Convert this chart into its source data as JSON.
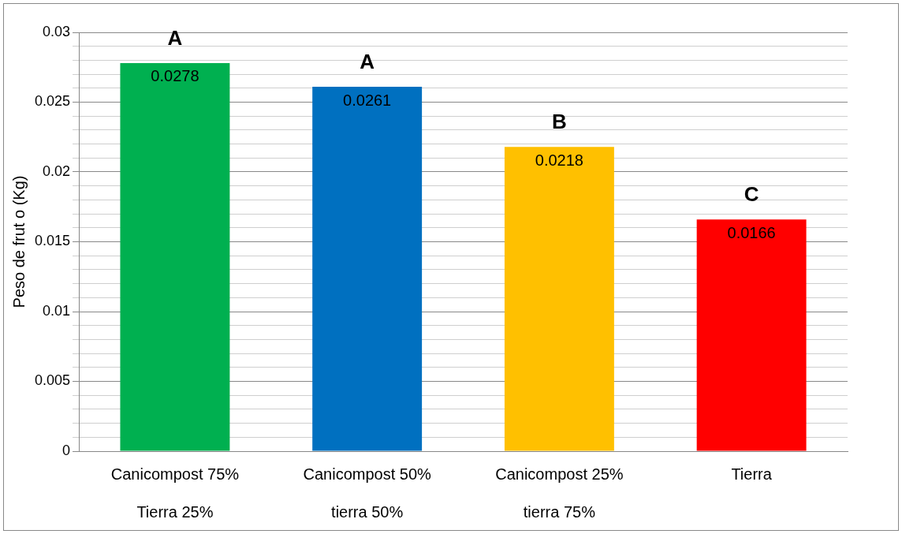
{
  "chart_data": {
    "type": "bar",
    "ylabel": "Peso de frut o (Kg)",
    "categories": [
      "Canicompost 75%\n\nTierra 25%",
      "Canicompost 50%\n\ntierra 50%",
      "Canicompost 25%\n\ntierra 75%",
      "Tierra"
    ],
    "values": [
      0.0278,
      0.0261,
      0.0218,
      0.0166
    ],
    "colors": [
      "#00b050",
      "#0070c0",
      "#ffc000",
      "#ff0000"
    ],
    "ylim": [
      0,
      0.03
    ],
    "yticks": [
      0,
      {
        "value": 0.001,
        "label": null
      },
      {
        "value": 0.002,
        "label": null
      },
      {
        "value": 0.003,
        "label": null
      },
      {
        "value": 0.004,
        "label": null
      },
      0.005,
      {
        "value": 0.006,
        "label": null
      },
      {
        "value": 0.007,
        "label": null
      },
      {
        "value": 0.008,
        "label": null
      },
      {
        "value": 0.009,
        "label": null
      },
      0.01,
      {
        "value": 0.011,
        "label": null
      },
      {
        "value": 0.012,
        "label": null
      },
      {
        "value": 0.013,
        "label": null
      },
      {
        "value": 0.014,
        "label": null
      },
      0.015,
      {
        "value": 0.016,
        "label": null
      },
      {
        "value": 0.017,
        "label": null
      },
      {
        "value": 0.018,
        "label": null
      },
      {
        "value": 0.019,
        "label": null
      },
      0.02,
      {
        "value": 0.021,
        "label": null
      },
      {
        "value": 0.022,
        "label": null
      },
      {
        "value": 0.023,
        "label": null
      },
      {
        "value": 0.024,
        "label": null
      },
      0.025,
      {
        "value": 0.026,
        "label": null
      },
      {
        "value": 0.027,
        "label": null
      },
      {
        "value": 0.028,
        "label": null
      },
      {
        "value": 0.029,
        "label": null
      },
      0.03
    ],
    "grid": true,
    "data_labels": true,
    "annotations": [
      "A",
      "A",
      "B",
      "C"
    ]
  }
}
